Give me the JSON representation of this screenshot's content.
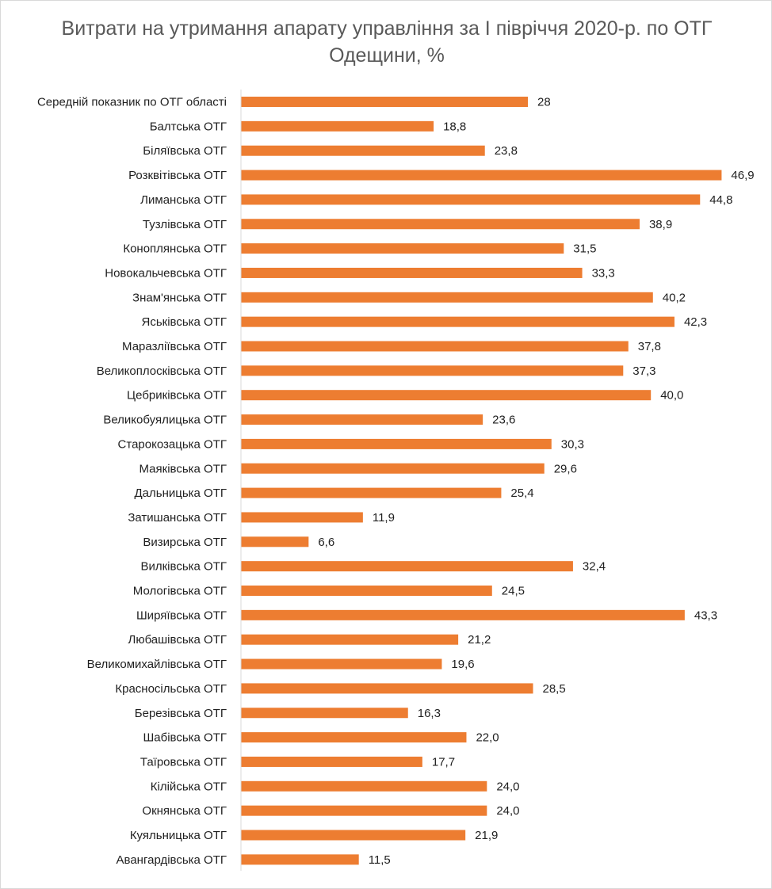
{
  "chart_data": {
    "type": "bar",
    "orientation": "horizontal",
    "title": "Витрати на утримання апарату управління за І півріччя 2020-р. по ОТГ Одещини, %",
    "xlabel": "",
    "ylabel": "",
    "xlim": [
      0,
      48
    ],
    "grid": false,
    "legend": "none",
    "bar_color": "#ed7d31",
    "categories": [
      "Середній показник по ОТГ області",
      "Балтська ОТГ",
      "Біляївська ОТГ",
      "Розквітівська ОТГ",
      "Лиманська ОТГ",
      "Тузлівська ОТГ",
      "Коноплянська ОТГ",
      "Новокальчевська ОТГ",
      "Знам'янська ОТГ",
      "Яськівська ОТГ",
      "Маразліївська ОТГ",
      "Великоплосківська ОТГ",
      "Цебриківська ОТГ",
      "Великобуялицька ОТГ",
      "Старокозацька ОТГ",
      "Маяківська ОТГ",
      "Дальницька ОТГ",
      "Затишанська ОТГ",
      "Визирська ОТГ",
      "Вилківська ОТГ",
      "Мологівська ОТГ",
      "Ширяївська  ОТГ",
      "Любашівська ОТГ",
      "Великомихайлівська ОТГ",
      "Красносільська  ОТГ",
      "Березівська ОТГ",
      "Шабівська ОТГ",
      "Таїровська ОТГ",
      "Кілійська ОТГ",
      "Окнянська ОТГ",
      "Куяльницька ОТГ",
      "Авангардівська ОТГ"
    ],
    "values": [
      28,
      18.8,
      23.8,
      46.9,
      44.8,
      38.9,
      31.5,
      33.3,
      40.2,
      42.3,
      37.8,
      37.3,
      40.0,
      23.6,
      30.3,
      29.6,
      25.4,
      11.9,
      6.6,
      32.4,
      24.5,
      43.3,
      21.2,
      19.6,
      28.5,
      16.3,
      22.0,
      17.7,
      24.0,
      24.0,
      21.9,
      11.5
    ],
    "value_labels": [
      "28",
      "18,8",
      "23,8",
      "46,9",
      "44,8",
      "38,9",
      "31,5",
      "33,3",
      "40,2",
      "42,3",
      "37,8",
      "37,3",
      "40,0",
      "23,6",
      "30,3",
      "29,6",
      "25,4",
      "11,9",
      "6,6",
      "32,4",
      "24,5",
      "43,3",
      "21,2",
      "19,6",
      "28,5",
      "16,3",
      "22,0",
      "17,7",
      "24,0",
      "24,0",
      "21,9",
      "11,5"
    ]
  }
}
